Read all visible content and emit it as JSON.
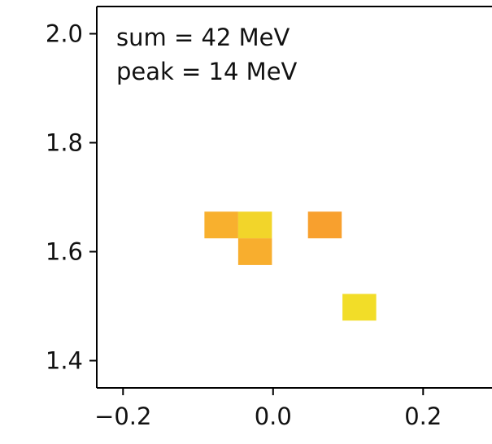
{
  "chart_data": {
    "type": "heatmap",
    "title": "",
    "xlabel": "",
    "ylabel": "",
    "xlim": [
      -0.235,
      0.32
    ],
    "ylim": [
      1.35,
      2.05
    ],
    "grid": false,
    "x_ticks": [
      {
        "value": -0.2,
        "label": "−0.2"
      },
      {
        "value": 0.0,
        "label": "0.0"
      },
      {
        "value": 0.2,
        "label": "0.2"
      }
    ],
    "y_ticks": [
      {
        "value": 1.4,
        "label": "1.4"
      },
      {
        "value": 1.6,
        "label": "1.6"
      },
      {
        "value": 1.8,
        "label": "1.8"
      },
      {
        "value": 2.0,
        "label": "2.0"
      }
    ],
    "cell_width": 0.045,
    "cell_height": 0.049,
    "cells": [
      {
        "x": -0.069,
        "y": 1.649,
        "color": "#f8b02e"
      },
      {
        "x": -0.024,
        "y": 1.649,
        "color": "#f2d52a"
      },
      {
        "x": -0.024,
        "y": 1.6,
        "color": "#f8ae2e"
      },
      {
        "x": 0.069,
        "y": 1.649,
        "color": "#f8a02e"
      },
      {
        "x": 0.115,
        "y": 1.498,
        "color": "#f2dd28"
      }
    ],
    "annotations": [
      "sum = 42 MeV",
      "peak = 14 MeV"
    ]
  }
}
